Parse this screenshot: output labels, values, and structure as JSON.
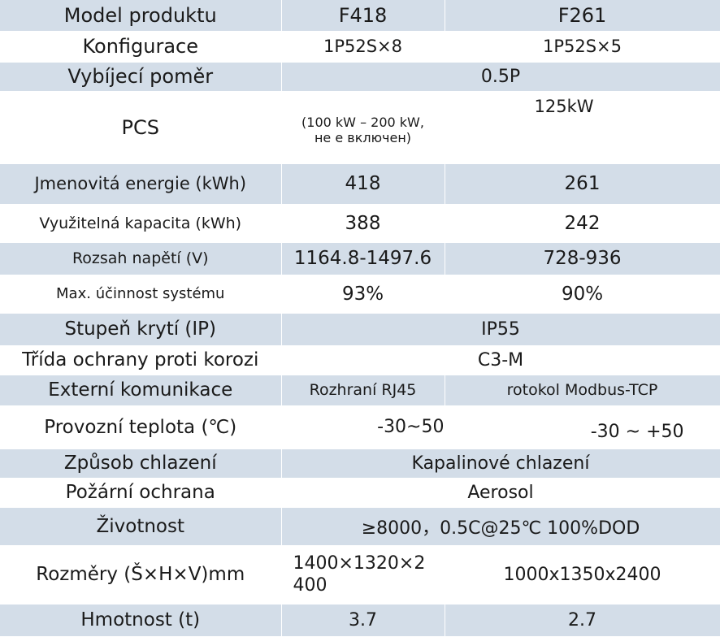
{
  "rows": [
    {
      "label": "Model produktu",
      "c1": "F418",
      "c2": "F261"
    },
    {
      "label": "Konfigurace",
      "c1": "1P52S×8",
      "c2": "1P52S×5"
    },
    {
      "label": "Vybíjecí poměr",
      "merged": "0.5P"
    },
    {
      "label": "PCS",
      "c1": "(100 kW – 200 kW,\nне е включен)",
      "c2": "125kW"
    },
    {
      "label": "Jmenovitá energie (kWh)",
      "c1": "418",
      "c2": "261"
    },
    {
      "label": "Využitelná kapacita (kWh)",
      "c1": "388",
      "c2": "242"
    },
    {
      "label": "Rozsah napětí (V)",
      "c1": "1164.8-1497.6",
      "c2": "728-936"
    },
    {
      "label": "Max. účinnost systému",
      "c1": "93%",
      "c2": "90%"
    },
    {
      "label": "Stupeň krytí (IP)",
      "merged": "IP55"
    },
    {
      "label": "Třída ochrany proti korozi",
      "merged": "C3-M"
    },
    {
      "label": "Externí komunikace",
      "c1": "Rozhraní RJ45",
      "c2": "rotokol Modbus-TCP"
    },
    {
      "label": "Provozní teplota (℃)",
      "c1": "-30~50",
      "c2": "-30 ~ +50"
    },
    {
      "label": "Způsob chlazení",
      "merged": "Kapalinové chlazení"
    },
    {
      "label": "Požární ochrana",
      "merged": "Aerosol"
    },
    {
      "label": "Životnost",
      "merged": "≥8000，0.5C@25℃ 100%DOD"
    },
    {
      "label": "Rozměry (Š×H×V)mm",
      "c1": "1400×1320×2\n400",
      "c2": "1000x1350x2400"
    },
    {
      "label": "Hmotnost (t)",
      "c1": "3.7",
      "c2": "2.7"
    }
  ]
}
